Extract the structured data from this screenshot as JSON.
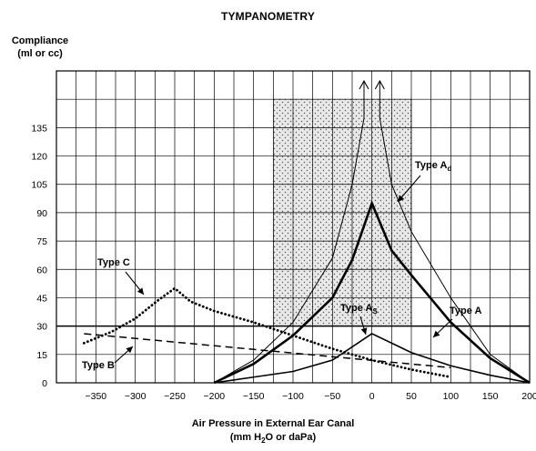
{
  "chart_data": {
    "type": "line",
    "title": "TYMPANOMETRY",
    "ylabel_line1": "Compliance",
    "ylabel_line2": "(ml or cc)",
    "xlabel_line1": "Air Pressure in External Ear Canal",
    "xlabel_line2_pre": "(mm H",
    "xlabel_line2_sub": "2",
    "xlabel_line2_post": "O or daPa)",
    "xlim": [
      -400,
      200
    ],
    "ylim": [
      0,
      165
    ],
    "x_ticks": [
      -350,
      -300,
      -250,
      -200,
      -150,
      -100,
      -50,
      0,
      50,
      100,
      150,
      200
    ],
    "x_tick_labels": [
      "−350",
      "−300",
      "−250",
      "−200",
      "−150",
      "−100",
      "−50",
      "0",
      "50",
      "100",
      "150",
      "200"
    ],
    "y_ticks": [
      0,
      15,
      30,
      45,
      60,
      75,
      90,
      105,
      120,
      135
    ],
    "y_tick_labels": [
      "0",
      "15",
      "30",
      "45",
      "60",
      "75",
      "90",
      "105",
      "120",
      "135"
    ],
    "grid": true,
    "shaded_region": {
      "x": [
        -125,
        50
      ],
      "y": [
        30,
        150
      ]
    },
    "series": [
      {
        "name": "Type A",
        "style": "thick-solid",
        "x": [
          -200,
          -150,
          -100,
          -50,
          -25,
          0,
          25,
          50,
          100,
          150,
          200
        ],
        "y": [
          0,
          10,
          25,
          45,
          65,
          95,
          70,
          57,
          32,
          13,
          0
        ]
      },
      {
        "name": "Type As",
        "style": "solid",
        "x": [
          -200,
          -150,
          -100,
          -50,
          0,
          50,
          100,
          150,
          200
        ],
        "y": [
          0,
          3,
          6,
          12,
          26,
          16,
          9,
          4,
          0
        ]
      },
      {
        "name": "Type Ad",
        "style": "thin-arrow",
        "x": [
          -200,
          -150,
          -100,
          -50,
          -25,
          -10,
          0,
          10,
          25,
          50,
          100,
          150,
          200
        ],
        "y": [
          0,
          12,
          32,
          66,
          105,
          140,
          163,
          140,
          105,
          80,
          45,
          15,
          0
        ]
      },
      {
        "name": "Type C",
        "style": "dotted",
        "x": [
          -365,
          -330,
          -300,
          -270,
          -250,
          -230,
          -200,
          -150,
          -100,
          -50,
          0,
          50,
          100
        ],
        "y": [
          21,
          27,
          34,
          44,
          50,
          43,
          38,
          32,
          25,
          18,
          12,
          7,
          3
        ]
      },
      {
        "name": "Type B",
        "style": "dashed",
        "x": [
          -365,
          100
        ],
        "y": [
          26,
          8
        ]
      }
    ],
    "annotations": [
      {
        "text": "Type C",
        "sub": ""
      },
      {
        "text": "Type B",
        "sub": ""
      },
      {
        "text": "Type A",
        "sub": "d"
      },
      {
        "text": "Type A",
        "sub": "S"
      },
      {
        "text": "Type A",
        "sub": ""
      }
    ]
  }
}
